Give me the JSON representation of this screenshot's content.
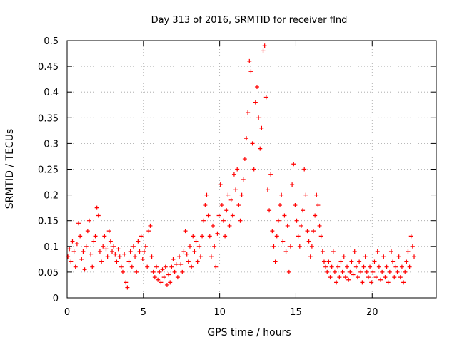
{
  "chart_data": {
    "type": "scatter",
    "title": "Day 313 of 2016, SRMTID for receiver flnd",
    "xlabel": "GPS time / hours",
    "ylabel": "SRMTID / TECUs",
    "xlim": [
      0,
      24.2
    ],
    "ylim": [
      0,
      0.5
    ],
    "xticks": [
      0,
      5,
      10,
      15,
      20
    ],
    "yticks": [
      0,
      0.05,
      0.1,
      0.15,
      0.2,
      0.25,
      0.3,
      0.35,
      0.4,
      0.45,
      0.5
    ],
    "xtick_labels": [
      "0",
      "5",
      "10",
      "15",
      "20"
    ],
    "ytick_labels": [
      "0",
      "0.05",
      "0.1",
      "0.15",
      "0.2",
      "0.25",
      "0.3",
      "0.35",
      "0.4",
      "0.45",
      "0.5"
    ],
    "grid": true,
    "marker": "+",
    "series": [
      {
        "name": "SRMTID",
        "color": "#ff0000",
        "points": [
          [
            0.05,
            0.08
          ],
          [
            0.15,
            0.095
          ],
          [
            0.25,
            0.07
          ],
          [
            0.35,
            0.11
          ],
          [
            0.45,
            0.09
          ],
          [
            0.55,
            0.06
          ],
          [
            0.65,
            0.105
          ],
          [
            0.75,
            0.145
          ],
          [
            0.85,
            0.12
          ],
          [
            0.95,
            0.075
          ],
          [
            1.05,
            0.09
          ],
          [
            1.15,
            0.055
          ],
          [
            1.25,
            0.1
          ],
          [
            1.35,
            0.13
          ],
          [
            1.45,
            0.15
          ],
          [
            1.55,
            0.085
          ],
          [
            1.65,
            0.06
          ],
          [
            1.75,
            0.11
          ],
          [
            1.85,
            0.12
          ],
          [
            1.95,
            0.175
          ],
          [
            2.05,
            0.16
          ],
          [
            2.15,
            0.09
          ],
          [
            2.25,
            0.07
          ],
          [
            2.35,
            0.1
          ],
          [
            2.45,
            0.12
          ],
          [
            2.55,
            0.095
          ],
          [
            2.65,
            0.08
          ],
          [
            2.75,
            0.13
          ],
          [
            2.85,
            0.11
          ],
          [
            2.95,
            0.09
          ],
          [
            3.05,
            0.1
          ],
          [
            3.15,
            0.085
          ],
          [
            3.25,
            0.07
          ],
          [
            3.35,
            0.095
          ],
          [
            3.45,
            0.08
          ],
          [
            3.55,
            0.06
          ],
          [
            3.65,
            0.05
          ],
          [
            3.75,
            0.085
          ],
          [
            3.85,
            0.03
          ],
          [
            3.95,
            0.02
          ],
          [
            4.05,
            0.07
          ],
          [
            4.15,
            0.09
          ],
          [
            4.25,
            0.06
          ],
          [
            4.35,
            0.1
          ],
          [
            4.45,
            0.08
          ],
          [
            4.55,
            0.05
          ],
          [
            4.65,
            0.11
          ],
          [
            4.75,
            0.09
          ],
          [
            4.85,
            0.12
          ],
          [
            4.95,
            0.075
          ],
          [
            5.05,
            0.09
          ],
          [
            5.15,
            0.1
          ],
          [
            5.25,
            0.06
          ],
          [
            5.35,
            0.13
          ],
          [
            5.45,
            0.14
          ],
          [
            5.55,
            0.08
          ],
          [
            5.65,
            0.05
          ],
          [
            5.75,
            0.04
          ],
          [
            5.85,
            0.06
          ],
          [
            5.95,
            0.035
          ],
          [
            6.05,
            0.05
          ],
          [
            6.15,
            0.03
          ],
          [
            6.25,
            0.055
          ],
          [
            6.35,
            0.04
          ],
          [
            6.45,
            0.06
          ],
          [
            6.55,
            0.025
          ],
          [
            6.65,
            0.045
          ],
          [
            6.75,
            0.03
          ],
          [
            6.85,
            0.06
          ],
          [
            6.95,
            0.075
          ],
          [
            7.05,
            0.05
          ],
          [
            7.15,
            0.065
          ],
          [
            7.25,
            0.04
          ],
          [
            7.35,
            0.08
          ],
          [
            7.45,
            0.065
          ],
          [
            7.55,
            0.05
          ],
          [
            7.65,
            0.09
          ],
          [
            7.75,
            0.13
          ],
          [
            7.85,
            0.085
          ],
          [
            7.95,
            0.07
          ],
          [
            8.05,
            0.1
          ],
          [
            8.15,
            0.06
          ],
          [
            8.25,
            0.12
          ],
          [
            8.35,
            0.09
          ],
          [
            8.45,
            0.11
          ],
          [
            8.55,
            0.07
          ],
          [
            8.65,
            0.1
          ],
          [
            8.75,
            0.08
          ],
          [
            8.85,
            0.12
          ],
          [
            8.95,
            0.15
          ],
          [
            9.05,
            0.18
          ],
          [
            9.15,
            0.2
          ],
          [
            9.25,
            0.16
          ],
          [
            9.35,
            0.12
          ],
          [
            9.45,
            0.08
          ],
          [
            9.55,
            0.14
          ],
          [
            9.65,
            0.1
          ],
          [
            9.75,
            0.06
          ],
          [
            9.85,
            0.125
          ],
          [
            9.95,
            0.16
          ],
          [
            10.05,
            0.22
          ],
          [
            10.15,
            0.18
          ],
          [
            10.25,
            0.15
          ],
          [
            10.35,
            0.12
          ],
          [
            10.45,
            0.17
          ],
          [
            10.55,
            0.2
          ],
          [
            10.65,
            0.14
          ],
          [
            10.75,
            0.19
          ],
          [
            10.85,
            0.16
          ],
          [
            10.95,
            0.24
          ],
          [
            11.05,
            0.21
          ],
          [
            11.15,
            0.25
          ],
          [
            11.25,
            0.18
          ],
          [
            11.35,
            0.15
          ],
          [
            11.45,
            0.2
          ],
          [
            11.55,
            0.23
          ],
          [
            11.65,
            0.27
          ],
          [
            11.75,
            0.31
          ],
          [
            11.85,
            0.36
          ],
          [
            11.95,
            0.46
          ],
          [
            12.05,
            0.44
          ],
          [
            12.15,
            0.3
          ],
          [
            12.25,
            0.25
          ],
          [
            12.35,
            0.38
          ],
          [
            12.45,
            0.41
          ],
          [
            12.55,
            0.35
          ],
          [
            12.65,
            0.29
          ],
          [
            12.75,
            0.33
          ],
          [
            12.85,
            0.48
          ],
          [
            12.95,
            0.49
          ],
          [
            13.05,
            0.39
          ],
          [
            13.15,
            0.21
          ],
          [
            13.25,
            0.17
          ],
          [
            13.35,
            0.24
          ],
          [
            13.45,
            0.13
          ],
          [
            13.55,
            0.1
          ],
          [
            13.65,
            0.07
          ],
          [
            13.75,
            0.12
          ],
          [
            13.85,
            0.15
          ],
          [
            13.95,
            0.18
          ],
          [
            14.05,
            0.2
          ],
          [
            14.15,
            0.11
          ],
          [
            14.25,
            0.16
          ],
          [
            14.35,
            0.09
          ],
          [
            14.45,
            0.14
          ],
          [
            14.55,
            0.05
          ],
          [
            14.65,
            0.1
          ],
          [
            14.75,
            0.22
          ],
          [
            14.85,
            0.26
          ],
          [
            14.95,
            0.18
          ],
          [
            15.05,
            0.15
          ],
          [
            15.15,
            0.12
          ],
          [
            15.25,
            0.1
          ],
          [
            15.35,
            0.14
          ],
          [
            15.45,
            0.17
          ],
          [
            15.55,
            0.25
          ],
          [
            15.65,
            0.2
          ],
          [
            15.75,
            0.13
          ],
          [
            15.85,
            0.11
          ],
          [
            15.95,
            0.08
          ],
          [
            16.05,
            0.1
          ],
          [
            16.15,
            0.13
          ],
          [
            16.25,
            0.16
          ],
          [
            16.35,
            0.2
          ],
          [
            16.45,
            0.18
          ],
          [
            16.55,
            0.14
          ],
          [
            16.65,
            0.12
          ],
          [
            16.75,
            0.09
          ],
          [
            16.85,
            0.07
          ],
          [
            16.95,
            0.06
          ],
          [
            17.05,
            0.05
          ],
          [
            17.15,
            0.07
          ],
          [
            17.25,
            0.04
          ],
          [
            17.35,
            0.06
          ],
          [
            17.45,
            0.09
          ],
          [
            17.55,
            0.05
          ],
          [
            17.65,
            0.03
          ],
          [
            17.75,
            0.06
          ],
          [
            17.85,
            0.04
          ],
          [
            17.95,
            0.07
          ],
          [
            18.05,
            0.05
          ],
          [
            18.15,
            0.08
          ],
          [
            18.25,
            0.04
          ],
          [
            18.35,
            0.06
          ],
          [
            18.45,
            0.035
          ],
          [
            18.55,
            0.05
          ],
          [
            18.65,
            0.07
          ],
          [
            18.75,
            0.045
          ],
          [
            18.85,
            0.09
          ],
          [
            18.95,
            0.06
          ],
          [
            19.05,
            0.04
          ],
          [
            19.15,
            0.07
          ],
          [
            19.25,
            0.05
          ],
          [
            19.35,
            0.03
          ],
          [
            19.45,
            0.06
          ],
          [
            19.55,
            0.08
          ],
          [
            19.65,
            0.05
          ],
          [
            19.75,
            0.04
          ],
          [
            19.85,
            0.06
          ],
          [
            19.95,
            0.03
          ],
          [
            20.05,
            0.05
          ],
          [
            20.15,
            0.07
          ],
          [
            20.25,
            0.04
          ],
          [
            20.35,
            0.09
          ],
          [
            20.45,
            0.06
          ],
          [
            20.55,
            0.035
          ],
          [
            20.65,
            0.05
          ],
          [
            20.75,
            0.08
          ],
          [
            20.85,
            0.04
          ],
          [
            20.95,
            0.06
          ],
          [
            21.05,
            0.03
          ],
          [
            21.15,
            0.05
          ],
          [
            21.25,
            0.09
          ],
          [
            21.35,
            0.07
          ],
          [
            21.45,
            0.04
          ],
          [
            21.55,
            0.06
          ],
          [
            21.65,
            0.05
          ],
          [
            21.75,
            0.08
          ],
          [
            21.85,
            0.04
          ],
          [
            21.95,
            0.06
          ],
          [
            22.05,
            0.03
          ],
          [
            22.15,
            0.05
          ],
          [
            22.25,
            0.07
          ],
          [
            22.35,
            0.09
          ],
          [
            22.45,
            0.06
          ],
          [
            22.55,
            0.12
          ],
          [
            22.65,
            0.1
          ],
          [
            22.75,
            0.08
          ]
        ]
      }
    ]
  }
}
